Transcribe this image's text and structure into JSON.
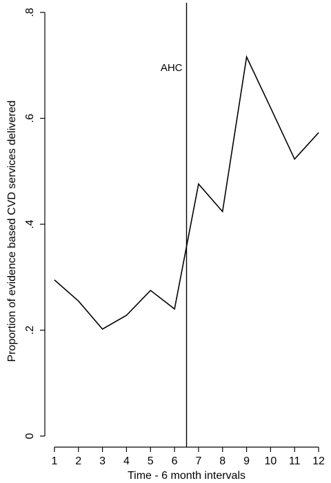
{
  "chart_data": {
    "type": "line",
    "title": "",
    "xlabel": "Time - 6 month intervals",
    "ylabel": "Proportion of evidence based CVD services delivered",
    "x": [
      1,
      2,
      3,
      4,
      5,
      6,
      7,
      8,
      9,
      10,
      11,
      12
    ],
    "x_tick_labels": [
      "1",
      "2",
      "3",
      "4",
      "5",
      "6",
      "7",
      "8",
      "9",
      "10",
      "11",
      "12"
    ],
    "xlim": [
      0.6,
      12.4
    ],
    "y_ticks": [
      0,
      0.2,
      0.4,
      0.6,
      0.8
    ],
    "y_tick_labels": [
      "0",
      ".2",
      ".4",
      ".6",
      ".8"
    ],
    "ylim": [
      0,
      0.8
    ],
    "grid": false,
    "series": [
      {
        "values": [
          0.295,
          0.255,
          0.202,
          0.228,
          0.275,
          0.24,
          0.476,
          0.424,
          0.716,
          0.62,
          0.523,
          0.573
        ]
      }
    ],
    "reference_line": {
      "orientation": "vertical",
      "x": 6.5,
      "label": "AHC"
    }
  }
}
